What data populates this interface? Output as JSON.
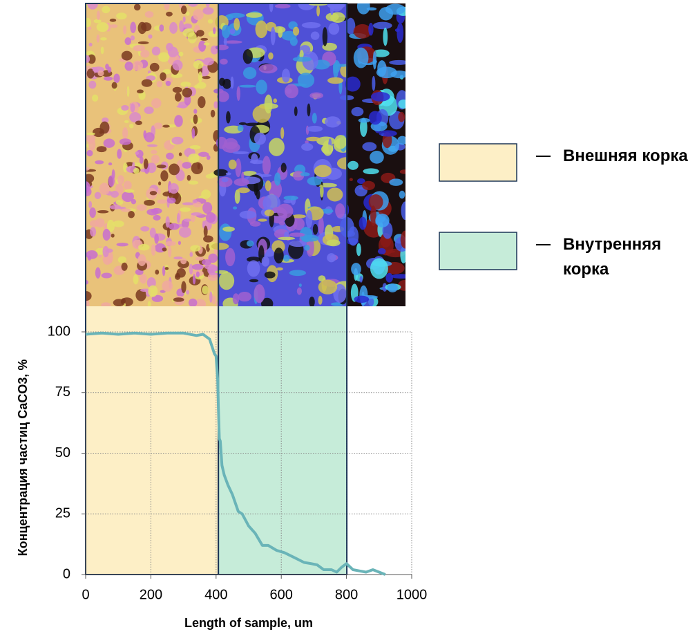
{
  "chart_data": {
    "type": "line",
    "x_label": "Length of sample, um",
    "y_label": "Концентрация частиц CaCO3, %",
    "x": [
      0,
      50,
      100,
      150,
      200,
      250,
      300,
      340,
      360,
      370,
      380,
      390,
      395,
      400,
      405,
      407,
      410,
      413,
      418,
      425,
      436,
      450,
      468,
      480,
      500,
      520,
      542,
      560,
      585,
      610,
      640,
      670,
      691,
      710,
      730,
      754,
      770,
      785,
      800,
      820,
      839,
      860,
      881,
      900,
      919
    ],
    "series": [
      {
        "color": "#6ab4b8",
        "values": [
          99,
          99.5,
          99,
          99.5,
          99,
          99.5,
          99.5,
          98.5,
          99,
          98,
          97,
          93,
          91,
          90,
          80,
          69,
          56,
          55,
          45,
          41,
          37,
          33,
          26,
          25,
          20,
          17,
          12,
          12,
          10,
          9,
          7,
          5,
          4.5,
          4,
          2,
          2,
          1,
          3,
          4.5,
          2,
          1.5,
          1,
          2,
          1,
          0
        ]
      }
    ],
    "regions": [
      {
        "name": "Внешняя корка",
        "start": 0,
        "end": 407,
        "color": "#fdefc6"
      },
      {
        "name": "Внутренняя корка",
        "start": 407,
        "end": 801,
        "color": "#c6ecd9"
      }
    ],
    "xlim": [
      0,
      1000
    ],
    "ylim": [
      0,
      100
    ],
    "xticks": [
      0,
      200,
      400,
      600,
      800,
      1000
    ],
    "yticks": [
      0,
      25,
      50,
      75,
      100
    ],
    "grid": true
  }
}
